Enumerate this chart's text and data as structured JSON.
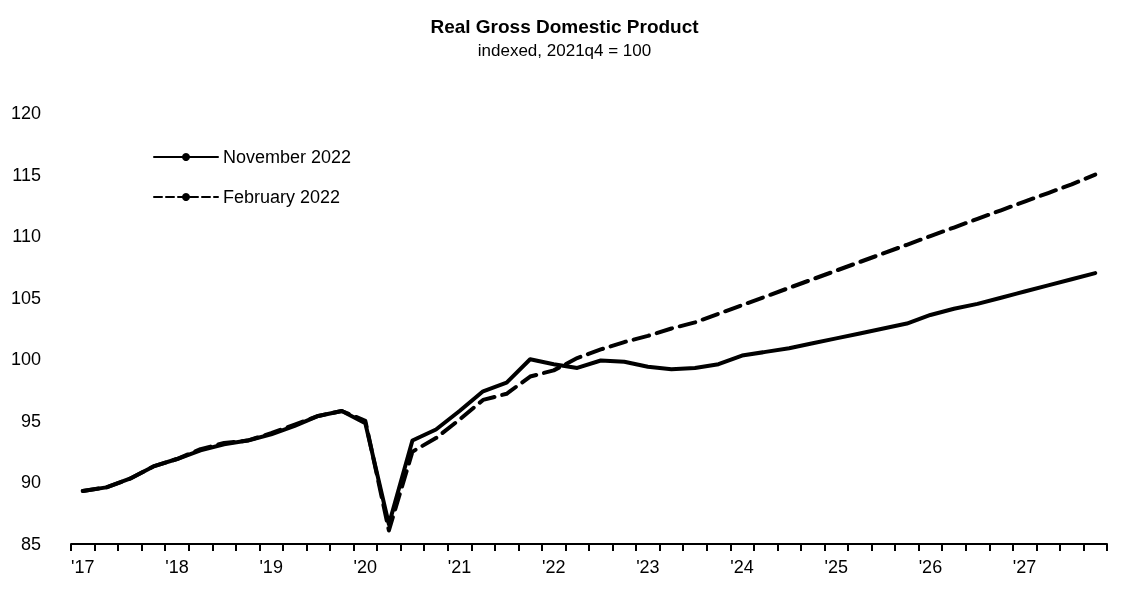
{
  "chart_data": {
    "type": "line",
    "title": "Real Gross Domestic Product",
    "subtitle": "indexed, 2021q4 = 100",
    "categories": [
      "'17",
      null,
      null,
      null,
      "'18",
      null,
      null,
      null,
      "'19",
      null,
      null,
      null,
      "'20",
      null,
      null,
      null,
      "'21",
      null,
      null,
      null,
      "'22",
      null,
      null,
      null,
      "'23",
      null,
      null,
      null,
      "'24",
      null,
      null,
      null,
      "'25",
      null,
      null,
      null,
      "'26",
      null,
      null,
      null,
      "'27",
      null,
      null,
      null
    ],
    "series": [
      {
        "name": "November 2022",
        "color": "#000000",
        "line_style": "solid",
        "values": [
          89.3,
          89.6,
          90.3,
          91.3,
          91.9,
          92.6,
          93.1,
          93.4,
          93.9,
          94.6,
          95.4,
          95.8,
          94.8,
          86.6,
          93.4,
          94.3,
          95.8,
          97.4,
          98.1,
          100.0,
          99.6,
          99.3,
          99.9,
          99.8,
          99.4,
          99.2,
          99.3,
          99.6,
          100.3,
          100.6,
          100.9,
          101.3,
          101.7,
          102.1,
          102.5,
          102.9,
          103.6,
          104.1,
          104.5,
          105.0,
          105.5,
          106.0,
          106.5,
          107.0
        ]
      },
      {
        "name": "February 2022",
        "color": "#000000",
        "line_style": "dashed",
        "values": [
          89.3,
          89.6,
          90.3,
          91.3,
          91.9,
          92.7,
          93.2,
          93.4,
          94.0,
          94.7,
          95.4,
          95.8,
          95.0,
          86.1,
          92.5,
          93.6,
          95.1,
          96.7,
          97.2,
          98.6,
          99.1,
          100.1,
          100.8,
          101.4,
          101.9,
          102.5,
          103.0,
          103.7,
          104.4,
          105.1,
          105.8,
          106.5,
          107.2,
          107.9,
          108.6,
          109.3,
          110.0,
          110.7,
          111.4,
          112.1,
          112.8,
          113.5,
          114.2,
          115.0
        ]
      }
    ],
    "ylim": [
      85,
      120
    ],
    "yticks": [
      85,
      90,
      95,
      100,
      105,
      110,
      115,
      120
    ],
    "grid": false,
    "legend": "top left",
    "marker": "none"
  }
}
